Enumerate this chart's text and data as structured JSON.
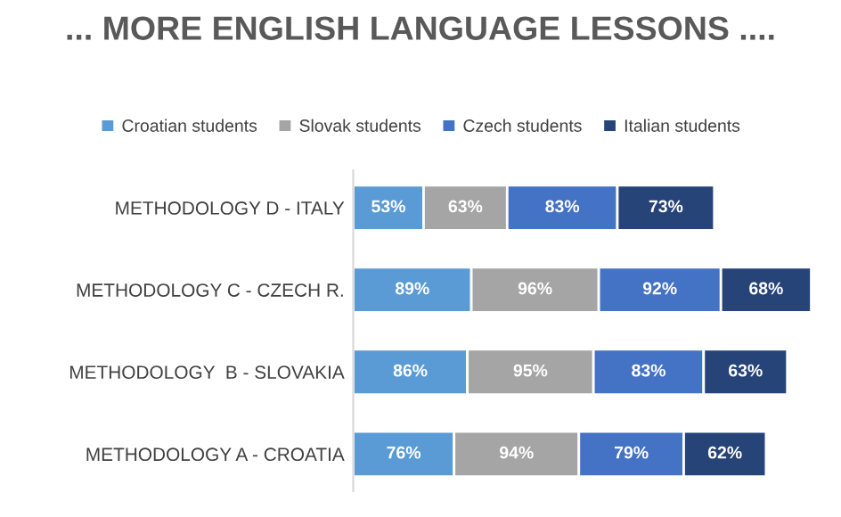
{
  "chart_data": {
    "type": "bar",
    "orientation": "horizontal",
    "stacked": true,
    "title": "... MORE ENGLISH LANGUAGE LESSONS ....",
    "categories": [
      "METHODOLOGY D - ITALY",
      "METHODOLOGY C - CZECH R.",
      "METHODOLOGY  B - SLOVAKIA",
      "METHODOLOGY A - CROATIA"
    ],
    "series": [
      {
        "name": "Croatian students",
        "color": "#5b9bd5",
        "values": [
          53,
          89,
          86,
          76
        ],
        "value_labels": [
          "53%",
          "89%",
          "86%",
          "76%"
        ]
      },
      {
        "name": "Slovak students",
        "color": "#a5a5a5",
        "values": [
          63,
          96,
          95,
          94
        ],
        "value_labels": [
          "63%",
          "96%",
          "95%",
          "94%"
        ]
      },
      {
        "name": "Czech students",
        "color": "#4472c4",
        "values": [
          83,
          92,
          83,
          79
        ],
        "value_labels": [
          "83%",
          "92%",
          "83%",
          "79%"
        ]
      },
      {
        "name": "Italian students",
        "color": "#264478",
        "values": [
          73,
          68,
          63,
          62
        ],
        "value_labels": [
          "73%",
          "68%",
          "63%",
          "62%"
        ]
      }
    ],
    "legend": "top",
    "grid": false
  }
}
